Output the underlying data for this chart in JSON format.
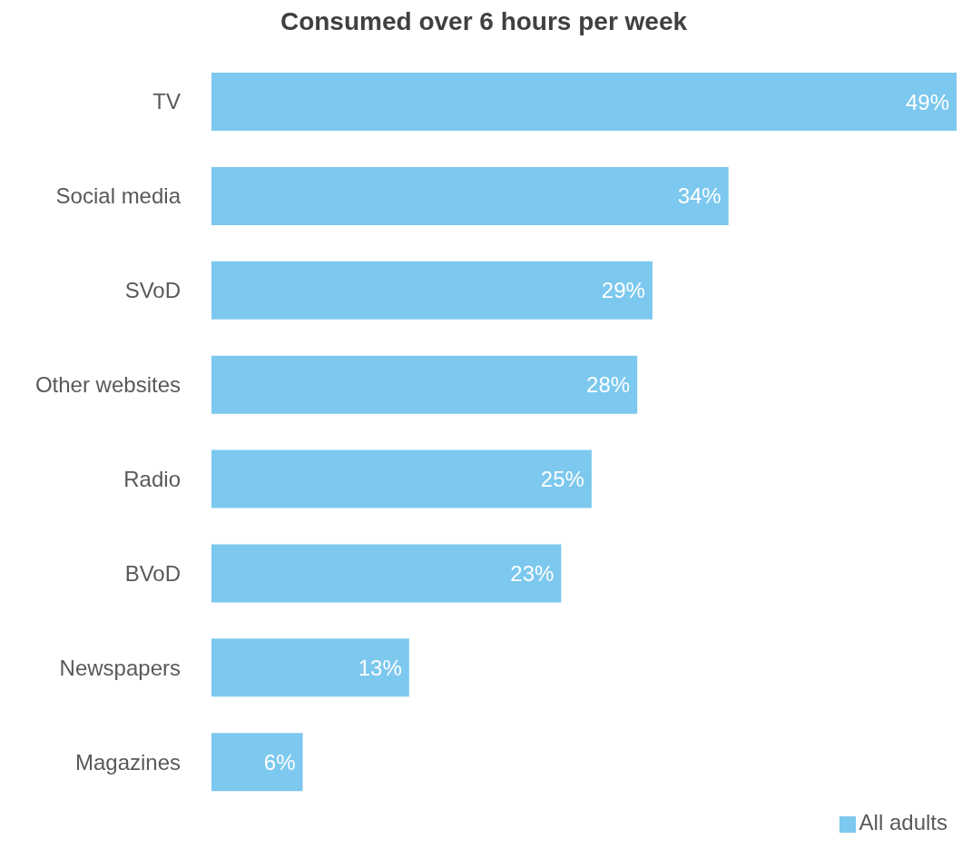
{
  "chart_data": {
    "type": "bar",
    "orientation": "horizontal",
    "title": "Consumed over 6 hours per week",
    "categories": [
      "TV",
      "Social media",
      "SVoD",
      "Other websites",
      "Radio",
      "BVoD",
      "Newspapers",
      "Magazines"
    ],
    "series": [
      {
        "name": "All adults",
        "color": "#7cc8ee",
        "values": [
          49,
          34,
          29,
          28,
          25,
          23,
          13,
          6
        ],
        "value_labels": [
          "49%",
          "34%",
          "29%",
          "28%",
          "25%",
          "23%",
          "13%",
          "6%"
        ]
      }
    ],
    "xlim": [
      0,
      49
    ],
    "tick_labels": "y",
    "legend": "bottom right"
  }
}
